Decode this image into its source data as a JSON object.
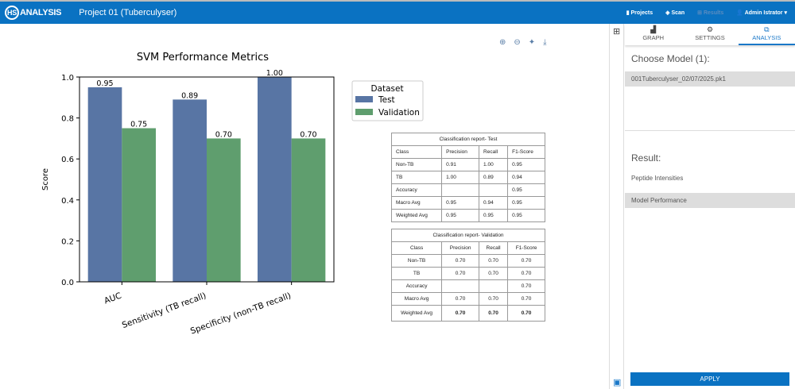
{
  "header": {
    "logo": "HS",
    "logo_text": "ANALYSIS",
    "project": "Project 01 (Tuberculyser)",
    "nav": [
      "Projects",
      "Scan",
      "Results",
      "Admin Istrator"
    ]
  },
  "chart_data": {
    "type": "bar",
    "title": "SVM Performance Metrics",
    "ylabel": "Score",
    "xlabel": "",
    "ylim": [
      0,
      1.0
    ],
    "yticks": [
      "0.0",
      "0.2",
      "0.4",
      "0.6",
      "0.8",
      "1.0"
    ],
    "categories": [
      "AUC",
      "Sensitivity (TB recall)",
      "Specificity (non-TB recall)"
    ],
    "legend_title": "Dataset",
    "legend_placement": "right",
    "series": [
      {
        "name": "Test",
        "color": "#5875a4",
        "values": [
          0.95,
          0.89,
          1.0
        ],
        "labels": [
          "0.95",
          "0.89",
          "1.00"
        ]
      },
      {
        "name": "Validation",
        "color": "#5f9e6e",
        "values": [
          0.75,
          0.7,
          0.7
        ],
        "labels": [
          "0.75",
          "0.70",
          "0.70"
        ]
      }
    ]
  },
  "tables": [
    {
      "caption": "Classification report- Test",
      "rows": [
        [
          "Class",
          "Precision",
          "Recall",
          "F1-Score"
        ],
        [
          "Non-TB",
          "0.91",
          "1.00",
          "0.95"
        ],
        [
          "TB",
          "1.00",
          "0.89",
          "0.94"
        ],
        [
          "Accuracy",
          "",
          "",
          "0.95"
        ],
        [
          "Macro Avg",
          "0.95",
          "0.94",
          "0.95"
        ],
        [
          "Weighted Avg",
          "0.95",
          "0.95",
          "0.95"
        ]
      ]
    },
    {
      "caption": "Classification report- Validation",
      "rows": [
        [
          "Class",
          "Precision",
          "Recall",
          "F1-Score"
        ],
        [
          "Non-TB",
          "0.70",
          "0.70",
          "0.70"
        ],
        [
          "TB",
          "0.70",
          "0.70",
          "0.70"
        ],
        [
          "Accuracy",
          "",
          "",
          "0.70"
        ],
        [
          "Macro Avg",
          "0.70",
          "0.70",
          "0.70"
        ],
        [
          "Weighted Avg",
          "0.70",
          "0.70",
          "0.70"
        ]
      ]
    }
  ],
  "panel": {
    "tabs": [
      "GRAPH",
      "SETTINGS",
      "ANALYSIS"
    ],
    "choose_model": "Choose Model (1):",
    "model": "001Tuberculyser_02/07/2025.pk1",
    "result": "Result:",
    "results": [
      "Peptide Intensities",
      "Model Performance"
    ],
    "apply": "APPLY"
  }
}
